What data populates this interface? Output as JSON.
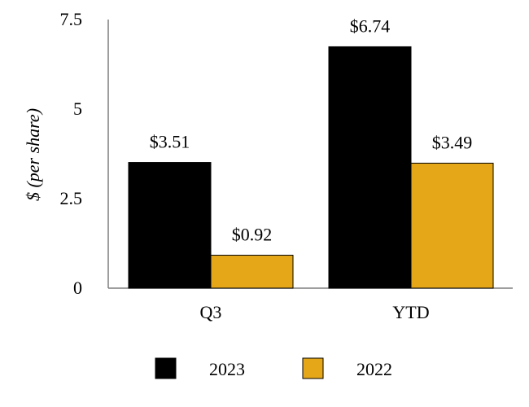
{
  "chart_data": {
    "type": "bar",
    "title": "",
    "xlabel": "",
    "ylabel": "$ (per share)",
    "categories": [
      "Q3",
      "YTD"
    ],
    "ylim": [
      0,
      7.5
    ],
    "yticks": [
      0,
      2.5,
      5,
      7.5
    ],
    "ytick_labels": [
      "0",
      "2.5",
      "5",
      "7.5"
    ],
    "grid": false,
    "legend_position": "bottom",
    "series": [
      {
        "name": "2023",
        "values": [
          3.51,
          6.74
        ],
        "labels": [
          "$3.51",
          "$6.74"
        ],
        "color": "#000000"
      },
      {
        "name": "2022",
        "values": [
          0.92,
          3.49
        ],
        "labels": [
          "$0.92",
          "$3.49"
        ],
        "color": "#E5A718"
      }
    ]
  }
}
